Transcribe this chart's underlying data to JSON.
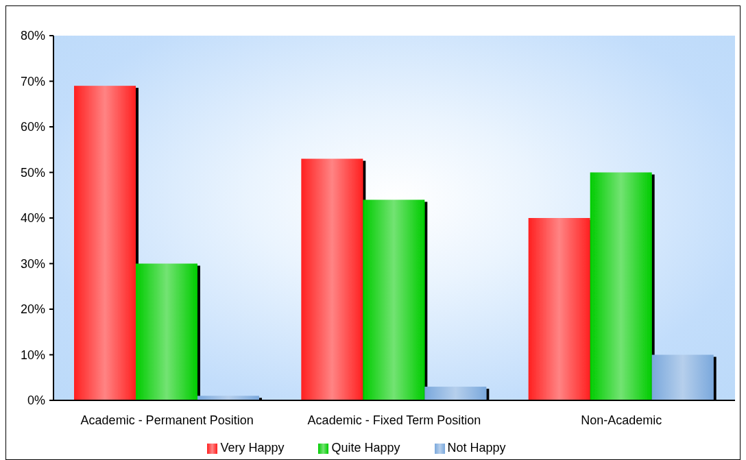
{
  "chart_data": {
    "type": "bar",
    "categories": [
      "Academic - Permanent Position",
      "Academic - Fixed Term Position",
      "Non-Academic"
    ],
    "series": [
      {
        "name": "Very Happy",
        "color": "#ff2020",
        "values": [
          69,
          53,
          40
        ]
      },
      {
        "name": "Quite Happy",
        "color": "#00cc00",
        "values": [
          30,
          44,
          50
        ]
      },
      {
        "name": "Not Happy",
        "color": "#7aa8dc",
        "values": [
          1,
          3,
          10
        ]
      }
    ],
    "ylim": [
      0,
      80
    ],
    "yticks": [
      {
        "value": 0,
        "label": "0%"
      },
      {
        "value": 10,
        "label": "10%"
      },
      {
        "value": 20,
        "label": "20%"
      },
      {
        "value": 30,
        "label": "30%"
      },
      {
        "value": 40,
        "label": "40%"
      },
      {
        "value": 50,
        "label": "50%"
      },
      {
        "value": 60,
        "label": "60%"
      },
      {
        "value": 70,
        "label": "70%"
      },
      {
        "value": 80,
        "label": "80%"
      }
    ],
    "legend": "bottom"
  }
}
